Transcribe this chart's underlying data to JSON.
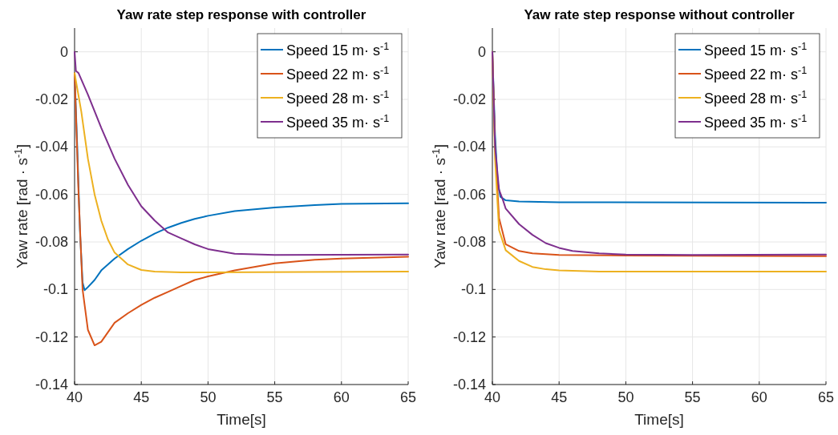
{
  "chart_data": [
    {
      "type": "line",
      "title": "Yaw rate step response with controller",
      "xlabel": "Time[s]",
      "ylabel": "Yaw rate [rad · s$^{-1}$]",
      "xlim": [
        40,
        65
      ],
      "ylim": [
        -0.14,
        0.01
      ],
      "xticks": [
        40,
        45,
        50,
        55,
        60,
        65
      ],
      "yticks": [
        -0.14,
        -0.12,
        -0.1,
        -0.08,
        -0.06,
        -0.04,
        -0.02,
        0
      ],
      "grid": true,
      "legend": "top right",
      "line_style": "solid",
      "marker": "none",
      "series": [
        {
          "name": "Speed 15 m· s$^{-1}$",
          "color": "#0072bd",
          "x": [
            40,
            40.2,
            40.4,
            40.6,
            40.75,
            41,
            41.5,
            42,
            43,
            44,
            45,
            46,
            47,
            48,
            49,
            50,
            52,
            55,
            58,
            60,
            65
          ],
          "values": [
            -0.009,
            -0.04,
            -0.075,
            -0.097,
            -0.1003,
            -0.099,
            -0.096,
            -0.092,
            -0.087,
            -0.083,
            -0.0795,
            -0.0765,
            -0.074,
            -0.072,
            -0.0703,
            -0.069,
            -0.067,
            -0.0655,
            -0.0645,
            -0.064,
            -0.0637
          ]
        },
        {
          "name": "Speed 22 m· s$^{-1}$",
          "color": "#d95319",
          "x": [
            40,
            40.3,
            40.6,
            41,
            41.5,
            42,
            43,
            44,
            45,
            46,
            47,
            48,
            49,
            50,
            52,
            55,
            58,
            60,
            65
          ],
          "values": [
            -0.009,
            -0.06,
            -0.1,
            -0.117,
            -0.1235,
            -0.122,
            -0.114,
            -0.11,
            -0.1065,
            -0.1035,
            -0.101,
            -0.0985,
            -0.096,
            -0.0945,
            -0.092,
            -0.089,
            -0.0875,
            -0.087,
            -0.0862
          ]
        },
        {
          "name": "Speed 28 m· s$^{-1}$",
          "color": "#edb120",
          "x": [
            40,
            40.5,
            41,
            41.5,
            42,
            42.5,
            43,
            44,
            45,
            46,
            48,
            65
          ],
          "values": [
            -0.009,
            -0.025,
            -0.045,
            -0.06,
            -0.071,
            -0.079,
            -0.0845,
            -0.0895,
            -0.0918,
            -0.0925,
            -0.0928,
            -0.0925
          ]
        },
        {
          "name": "Speed 35 m· s$^{-1}$",
          "color": "#7e2f8e",
          "x": [
            40,
            40.1,
            40.3,
            41,
            42,
            43,
            44,
            45,
            46,
            47,
            48,
            49,
            50,
            52,
            55,
            65
          ],
          "values": [
            0,
            -0.008,
            -0.009,
            -0.018,
            -0.032,
            -0.045,
            -0.056,
            -0.065,
            -0.071,
            -0.076,
            -0.0785,
            -0.081,
            -0.083,
            -0.085,
            -0.0855,
            -0.0853
          ]
        }
      ]
    },
    {
      "type": "line",
      "title": "Yaw rate step response without controller",
      "xlabel": "Time[s]",
      "ylabel": "Yaw rate [rad · s$^{-1}$]",
      "xlim": [
        40,
        65
      ],
      "ylim": [
        -0.14,
        0.01
      ],
      "xticks": [
        40,
        45,
        50,
        55,
        60,
        65
      ],
      "yticks": [
        -0.14,
        -0.12,
        -0.1,
        -0.08,
        -0.06,
        -0.04,
        -0.02,
        0
      ],
      "grid": true,
      "legend": "top right",
      "line_style": "solid",
      "marker": "none",
      "series": [
        {
          "name": "Speed 15 m· s$^{-1}$",
          "color": "#0072bd",
          "x": [
            40,
            40.2,
            40.4,
            40.6,
            41,
            42,
            45,
            65
          ],
          "values": [
            0,
            -0.035,
            -0.055,
            -0.061,
            -0.0625,
            -0.063,
            -0.0633,
            -0.0635
          ]
        },
        {
          "name": "Speed 22 m· s$^{-1}$",
          "color": "#d95319",
          "x": [
            40,
            40.2,
            40.5,
            41,
            42,
            43,
            45,
            50,
            65
          ],
          "values": [
            0,
            -0.04,
            -0.07,
            -0.081,
            -0.0838,
            -0.0848,
            -0.0855,
            -0.0857,
            -0.086
          ]
        },
        {
          "name": "Speed 28 m· s$^{-1}$",
          "color": "#edb120",
          "x": [
            40,
            40.2,
            40.5,
            41,
            42,
            43,
            44,
            45,
            48,
            65
          ],
          "values": [
            0,
            -0.045,
            -0.075,
            -0.0835,
            -0.088,
            -0.0905,
            -0.0915,
            -0.092,
            -0.0925,
            -0.0925
          ]
        },
        {
          "name": "Speed 35 m· s$^{-1}$",
          "color": "#7e2f8e",
          "x": [
            40,
            40.2,
            40.5,
            40.8,
            41,
            42,
            43,
            44,
            45,
            46,
            48,
            50,
            55,
            65
          ],
          "values": [
            0,
            -0.04,
            -0.058,
            -0.0625,
            -0.066,
            -0.0725,
            -0.077,
            -0.0805,
            -0.0825,
            -0.0838,
            -0.0848,
            -0.0853,
            -0.0855,
            -0.0853
          ]
        }
      ]
    }
  ]
}
